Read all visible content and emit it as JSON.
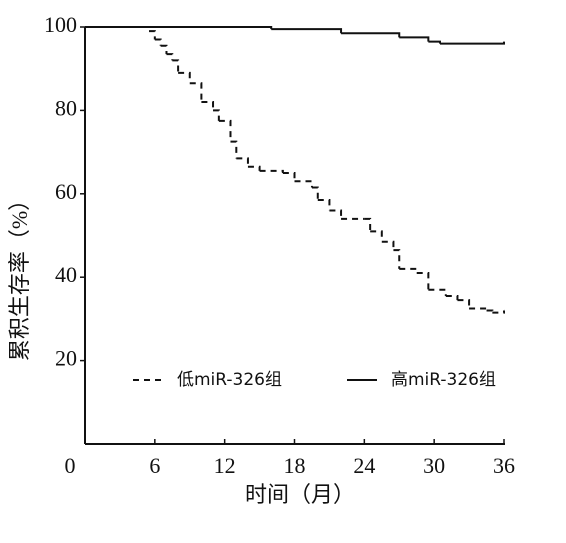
{
  "chart_data": {
    "type": "line",
    "step": "post",
    "xlabel": "时间（月）",
    "ylabel": "累积生存率（%）",
    "xlim": [
      0,
      36
    ],
    "ylim": [
      0,
      100
    ],
    "xticks": [
      0,
      6,
      12,
      18,
      24,
      30,
      36
    ],
    "yticks": [
      20,
      40,
      60,
      80,
      100
    ],
    "legend": "lower center",
    "series": [
      {
        "name": "低miR-326组",
        "color": "#111111",
        "dash": true,
        "x": [
          0,
          5,
          5.5,
          6,
          6.5,
          7,
          7.5,
          8,
          9,
          10,
          11,
          11.5,
          12.5,
          13,
          14,
          15,
          17,
          18,
          19.5,
          20,
          21,
          22,
          24,
          24.5,
          25.5,
          26.5,
          27,
          28.5,
          29.5,
          31,
          32,
          33,
          34.5,
          35,
          36
        ],
        "values": [
          100,
          100,
          99,
          97,
          95.5,
          93.5,
          92,
          89,
          86.5,
          82,
          80,
          77.5,
          72.5,
          68.5,
          66.5,
          65.5,
          65,
          63,
          61.5,
          58.5,
          56,
          54,
          54,
          51,
          48.5,
          46.5,
          42,
          41,
          37,
          35.5,
          34.5,
          32.5,
          32,
          31.5,
          32
        ]
      },
      {
        "name": "高miR-326组",
        "color": "#111111",
        "dash": false,
        "x": [
          0,
          16,
          22,
          27,
          29.5,
          30.5,
          36
        ],
        "values": [
          100,
          99.5,
          98.5,
          97.5,
          96.5,
          96,
          96.5
        ]
      }
    ]
  }
}
